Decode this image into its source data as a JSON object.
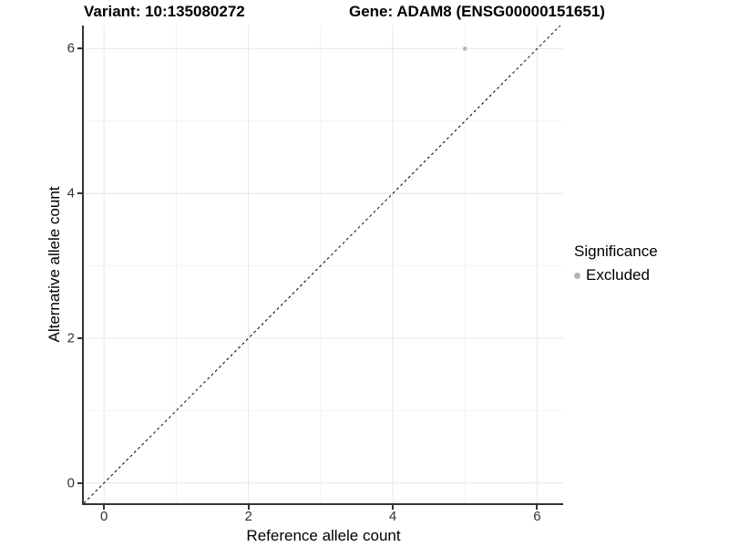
{
  "chart_data": {
    "type": "scatter",
    "title_variant": "Variant: 10:135080272",
    "title_gene": "Gene: ADAM8 (ENSG00000151651)",
    "xlabel": "Reference allele count",
    "ylabel": "Alternative allele count",
    "xlim": [
      -0.28,
      6.36
    ],
    "ylim": [
      -0.28,
      6.32
    ],
    "x_ticks": [
      0,
      2,
      4,
      6
    ],
    "y_ticks": [
      0,
      2,
      4,
      6
    ],
    "x_minor_ticks": [
      1,
      3,
      5
    ],
    "y_minor_ticks": [
      1,
      3,
      5
    ],
    "grid": true,
    "identity_line": {
      "style": "dashed",
      "color": "#000000",
      "equation": "y = x"
    },
    "series": [
      {
        "name": "Excluded",
        "color": "#b4b4b4",
        "marker": "circle",
        "points": [
          {
            "x": 5,
            "y": 6
          }
        ]
      }
    ],
    "legend": {
      "title": "Significance",
      "position": "right",
      "items": [
        {
          "label": "Excluded",
          "color": "#b4b4b4",
          "marker": "circle"
        }
      ]
    },
    "colors": {
      "background": "#ffffff",
      "grid_major": "#e7e7e7",
      "grid_minor": "#f2f2f2",
      "axis": "#333333",
      "tick_label": "#333333",
      "title": "#000000"
    }
  }
}
